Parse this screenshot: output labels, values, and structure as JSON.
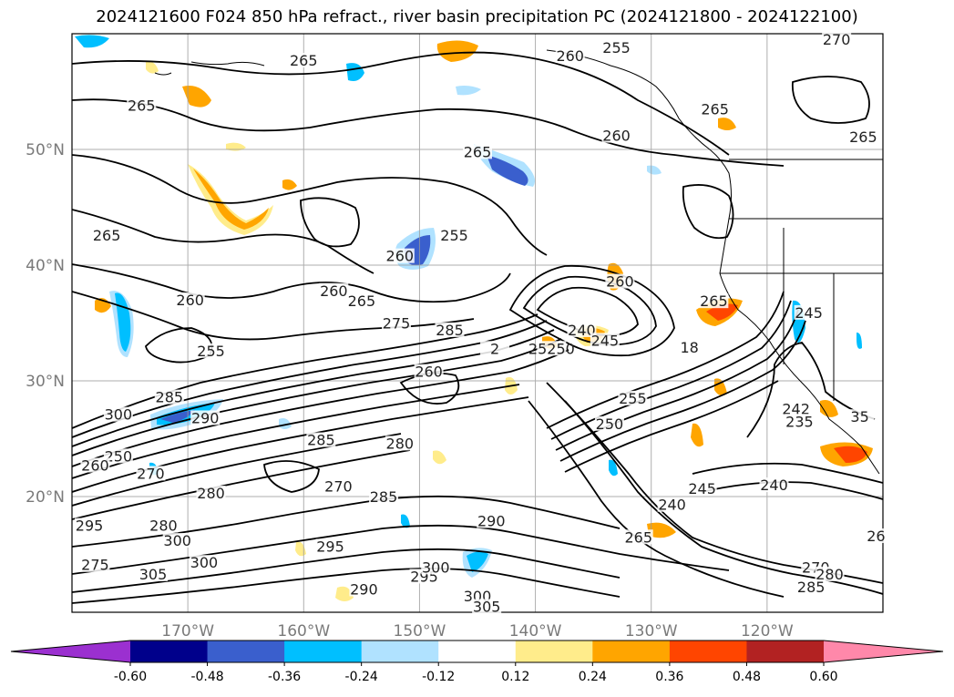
{
  "title": "2024121600 F024 850 hPa refract., river basin precipitation PC (2024121800 - 2024122100)",
  "map": {
    "lon_range": [
      -180,
      -110
    ],
    "lat_range": [
      10,
      60
    ],
    "lat_ticks": [
      {
        "value": 50,
        "label": "50°N"
      },
      {
        "value": 40,
        "label": "40°N"
      },
      {
        "value": 30,
        "label": "30°N"
      },
      {
        "value": 20,
        "label": "20°N"
      }
    ],
    "lon_ticks": [
      {
        "value": -170,
        "label": "170°W"
      },
      {
        "value": -160,
        "label": "160°W"
      },
      {
        "value": -150,
        "label": "150°W"
      },
      {
        "value": -140,
        "label": "140°W"
      },
      {
        "value": -130,
        "label": "130°W"
      },
      {
        "value": -120,
        "label": "120°W"
      }
    ],
    "grid": true,
    "contour_labels": [
      {
        "lon": -160,
        "lat": 57.4,
        "text": "265"
      },
      {
        "lon": -137,
        "lat": 57.8,
        "text": "260"
      },
      {
        "lon": -133,
        "lat": 58.5,
        "text": "255"
      },
      {
        "lon": -174,
        "lat": 53.5,
        "text": "265"
      },
      {
        "lon": -145,
        "lat": 49.5,
        "text": "265"
      },
      {
        "lon": -133,
        "lat": 50.9,
        "text": "260"
      },
      {
        "lon": -124.5,
        "lat": 53.2,
        "text": "265"
      },
      {
        "lon": -114,
        "lat": 59.2,
        "text": "270"
      },
      {
        "lon": -111.7,
        "lat": 50.8,
        "text": "265"
      },
      {
        "lon": -177,
        "lat": 42.3,
        "text": "265"
      },
      {
        "lon": -151.7,
        "lat": 40.5,
        "text": "260"
      },
      {
        "lon": -147,
        "lat": 42.3,
        "text": "255"
      },
      {
        "lon": -132.7,
        "lat": 38.3,
        "text": "260"
      },
      {
        "lon": -157.4,
        "lat": 37.5,
        "text": "260"
      },
      {
        "lon": -169.8,
        "lat": 36.7,
        "text": "260"
      },
      {
        "lon": -155,
        "lat": 36.6,
        "text": "265"
      },
      {
        "lon": -124.6,
        "lat": 36.6,
        "text": "265"
      },
      {
        "lon": -168,
        "lat": 32.3,
        "text": "255"
      },
      {
        "lon": -152,
        "lat": 34.7,
        "text": "275"
      },
      {
        "lon": -147.4,
        "lat": 34.1,
        "text": "285"
      },
      {
        "lon": -143.5,
        "lat": 32.5,
        "text": "2"
      },
      {
        "lon": -136,
        "lat": 34.1,
        "text": "240"
      },
      {
        "lon": -134,
        "lat": 33.2,
        "text": "245"
      },
      {
        "lon": -138.6,
        "lat": 32.5,
        "text": "25250"
      },
      {
        "lon": -126.7,
        "lat": 32.6,
        "text": "18"
      },
      {
        "lon": -116.4,
        "lat": 35.6,
        "text": "245"
      },
      {
        "lon": -149.2,
        "lat": 30.5,
        "text": "260"
      },
      {
        "lon": -171.6,
        "lat": 28.3,
        "text": "285"
      },
      {
        "lon": -168.5,
        "lat": 26.5,
        "text": "290"
      },
      {
        "lon": -176,
        "lat": 26.8,
        "text": "300"
      },
      {
        "lon": -158.5,
        "lat": 24.6,
        "text": "285"
      },
      {
        "lon": -151.7,
        "lat": 24.3,
        "text": "280"
      },
      {
        "lon": -131.6,
        "lat": 28.2,
        "text": "255"
      },
      {
        "lon": -133.6,
        "lat": 26.0,
        "text": "250"
      },
      {
        "lon": -117.5,
        "lat": 27.3,
        "text": "242"
      },
      {
        "lon": -117.2,
        "lat": 26.2,
        "text": "235"
      },
      {
        "lon": -112,
        "lat": 26.6,
        "text": "35"
      },
      {
        "lon": -176,
        "lat": 23.2,
        "text": "250"
      },
      {
        "lon": -178,
        "lat": 22.4,
        "text": "260"
      },
      {
        "lon": -173.2,
        "lat": 21.7,
        "text": "270"
      },
      {
        "lon": -168,
        "lat": 20.0,
        "text": "280"
      },
      {
        "lon": -157,
        "lat": 20.6,
        "text": "270"
      },
      {
        "lon": -153.1,
        "lat": 19.7,
        "text": "285"
      },
      {
        "lon": -125.6,
        "lat": 20.4,
        "text": "245"
      },
      {
        "lon": -119.4,
        "lat": 20.7,
        "text": "240"
      },
      {
        "lon": -128.2,
        "lat": 19.0,
        "text": "240"
      },
      {
        "lon": -143.8,
        "lat": 17.6,
        "text": "290"
      },
      {
        "lon": -178.5,
        "lat": 17.2,
        "text": "295"
      },
      {
        "lon": -172.1,
        "lat": 17.2,
        "text": "280"
      },
      {
        "lon": -170.9,
        "lat": 15.9,
        "text": "300"
      },
      {
        "lon": -157.7,
        "lat": 15.4,
        "text": "295"
      },
      {
        "lon": -131.1,
        "lat": 16.2,
        "text": "265"
      },
      {
        "lon": -178,
        "lat": 13.8,
        "text": "275"
      },
      {
        "lon": -173,
        "lat": 13.0,
        "text": "305"
      },
      {
        "lon": -168.6,
        "lat": 14.0,
        "text": "300"
      },
      {
        "lon": -149.6,
        "lat": 12.8,
        "text": "295"
      },
      {
        "lon": -148.6,
        "lat": 13.6,
        "text": "300"
      },
      {
        "lon": -154.8,
        "lat": 11.7,
        "text": "290"
      },
      {
        "lon": -145,
        "lat": 11.1,
        "text": "300"
      },
      {
        "lon": -144.2,
        "lat": 10.2,
        "text": "305"
      },
      {
        "lon": -115.8,
        "lat": 13.6,
        "text": "270"
      },
      {
        "lon": -114.6,
        "lat": 13.0,
        "text": "280"
      },
      {
        "lon": -116.2,
        "lat": 11.9,
        "text": "285"
      },
      {
        "lon": -110.6,
        "lat": 16.3,
        "text": "26"
      }
    ]
  },
  "colorbar": {
    "ticks": [
      "-0.60",
      "-0.48",
      "-0.36",
      "-0.24",
      "-0.12",
      "0.12",
      "0.24",
      "0.36",
      "0.48",
      "0.60"
    ],
    "colors": [
      "#9b30d0",
      "#00008b",
      "#3a5fcd",
      "#00bfff",
      "#b0e2ff",
      "#ffffff",
      "#ffec8b",
      "#ffa500",
      "#ff4500",
      "#b22222",
      "#ff88aa"
    ]
  }
}
